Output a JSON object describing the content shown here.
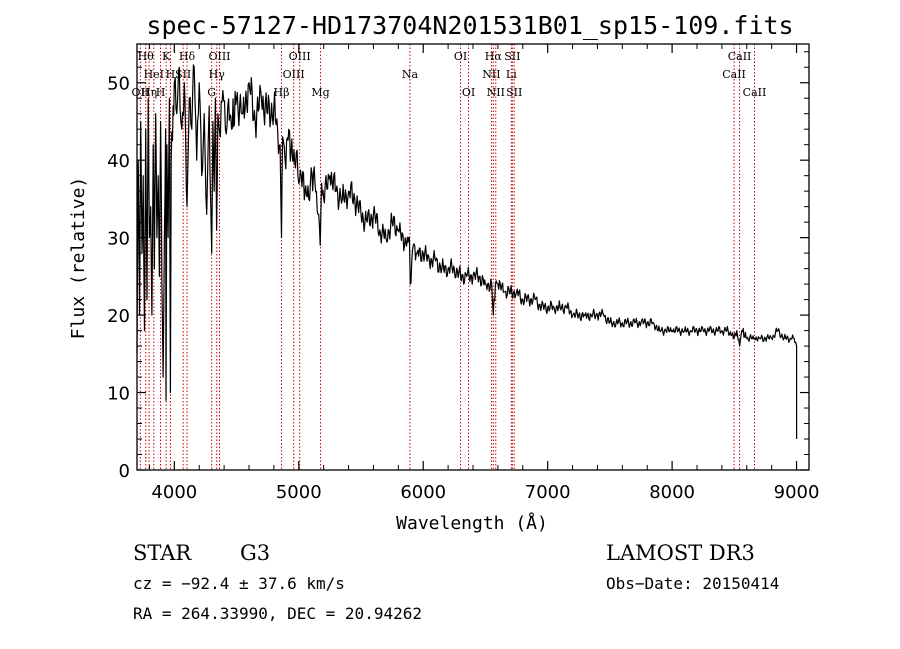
{
  "chart_data": {
    "type": "line",
    "title": "spec-57127-HD173704N201531B01_sp15-109.fits",
    "xlabel": "Wavelength (Å)",
    "ylabel": "Flux (relative)",
    "xlim": [
      3700,
      9100
    ],
    "ylim": [
      0,
      55
    ],
    "xticks": [
      4000,
      5000,
      6000,
      7000,
      8000,
      9000
    ],
    "yticks": [
      0,
      10,
      20,
      30,
      40,
      50
    ],
    "series": [
      {
        "name": "spectrum",
        "x": [
          3700,
          3710,
          3720,
          3730,
          3740,
          3750,
          3760,
          3770,
          3780,
          3790,
          3800,
          3810,
          3820,
          3830,
          3840,
          3850,
          3860,
          3870,
          3880,
          3890,
          3900,
          3910,
          3920,
          3930,
          3933,
          3940,
          3950,
          3960,
          3968,
          3975,
          3990,
          4000,
          4020,
          4040,
          4060,
          4080,
          4102,
          4120,
          4140,
          4160,
          4180,
          4200,
          4220,
          4240,
          4260,
          4280,
          4300,
          4310,
          4320,
          4330,
          4340,
          4350,
          4370,
          4390,
          4410,
          4430,
          4460,
          4500,
          4550,
          4600,
          4650,
          4700,
          4750,
          4800,
          4830,
          4850,
          4861,
          4870,
          4890,
          4920,
          4950,
          4980,
          5000,
          5020,
          5050,
          5080,
          5100,
          5130,
          5160,
          5172,
          5183,
          5200,
          5250,
          5300,
          5350,
          5400,
          5450,
          5500,
          5550,
          5600,
          5650,
          5700,
          5750,
          5800,
          5850,
          5889,
          5896,
          5920,
          5950,
          6000,
          6050,
          6100,
          6150,
          6200,
          6250,
          6300,
          6350,
          6400,
          6450,
          6500,
          6550,
          6563,
          6580,
          6600,
          6650,
          6700,
          6750,
          6800,
          6850,
          6900,
          6950,
          7000,
          7050,
          7100,
          7150,
          7200,
          7250,
          7300,
          7350,
          7400,
          7450,
          7500,
          7550,
          7600,
          7650,
          7700,
          7750,
          7800,
          7850,
          7900,
          7950,
          8000,
          8050,
          8100,
          8150,
          8200,
          8250,
          8300,
          8350,
          8400,
          8450,
          8498,
          8520,
          8542,
          8560,
          8600,
          8662,
          8700,
          8750,
          8800,
          8850,
          8900,
          8950,
          8980,
          9000
        ],
        "y": [
          15,
          40,
          20,
          45,
          28,
          38,
          18,
          44,
          22,
          48,
          30,
          34,
          20,
          42,
          26,
          46,
          30,
          38,
          25,
          45,
          24,
          12,
          30,
          44,
          9,
          42,
          30,
          48,
          10,
          40,
          47,
          50,
          46,
          52,
          44,
          50,
          34,
          48,
          44,
          52,
          40,
          50,
          38,
          46,
          33,
          47,
          28,
          45,
          36,
          48,
          31,
          46,
          43,
          49,
          44,
          47,
          44,
          48,
          46,
          50,
          45,
          48,
          46,
          47,
          44,
          42,
          30,
          43,
          40,
          44,
          40,
          41,
          37,
          38,
          36,
          35,
          39,
          37,
          33,
          29,
          37,
          35,
          38,
          36,
          35,
          36,
          35,
          33,
          32,
          33,
          31,
          30,
          32,
          31,
          29,
          30,
          24,
          29,
          28,
          28,
          27,
          27,
          26,
          26,
          26,
          25,
          25,
          25,
          25,
          24,
          24,
          20,
          24,
          24,
          23,
          23,
          23,
          22,
          22,
          22,
          21,
          21,
          21,
          21,
          21,
          20,
          20,
          20,
          20,
          20,
          20,
          19,
          19,
          19,
          19,
          19,
          19,
          19,
          19,
          18,
          18,
          18,
          18,
          18,
          18,
          18,
          18,
          18,
          18,
          18,
          18,
          17,
          18,
          16,
          18,
          17,
          17,
          17,
          17,
          17,
          18,
          17,
          17,
          17,
          16
        ]
      }
    ],
    "spectral_lines": [
      {
        "wl": 3727,
        "label": "OII",
        "row": 3
      },
      {
        "wl": 3770,
        "label": "Hθ",
        "row": 1
      },
      {
        "wl": 3797,
        "label": "Hη",
        "row": 3
      },
      {
        "wl": 3835,
        "label": "HeI",
        "row": 2
      },
      {
        "wl": 3889,
        "label": "H",
        "row": 3
      },
      {
        "wl": 3934,
        "label": "K",
        "row": 1
      },
      {
        "wl": 3969,
        "label": "H",
        "row": 2
      },
      {
        "wl": 4102,
        "label": "Hδ",
        "row": 1
      },
      {
        "wl": 4071,
        "label": "SII",
        "row": 2
      },
      {
        "wl": 4300,
        "label": "G",
        "row": 3
      },
      {
        "wl": 4341,
        "label": "Hγ",
        "row": 2
      },
      {
        "wl": 4363,
        "label": "OIII",
        "row": 1
      },
      {
        "wl": 4861,
        "label": "Hβ",
        "row": 3
      },
      {
        "wl": 4959,
        "label": "OIII",
        "row": 2
      },
      {
        "wl": 5007,
        "label": "OIII",
        "row": 1
      },
      {
        "wl": 5175,
        "label": "Mg",
        "row": 3
      },
      {
        "wl": 5893,
        "label": "Na",
        "row": 2
      },
      {
        "wl": 6300,
        "label": "OI",
        "row": 1
      },
      {
        "wl": 6364,
        "label": "OI",
        "row": 3
      },
      {
        "wl": 6548,
        "label": "NII",
        "row": 2
      },
      {
        "wl": 6563,
        "label": "Hα",
        "row": 1
      },
      {
        "wl": 6583,
        "label": "NII",
        "row": 3
      },
      {
        "wl": 6708,
        "label": "Li",
        "row": 2
      },
      {
        "wl": 6716,
        "label": "SII",
        "row": 1
      },
      {
        "wl": 6731,
        "label": "SII",
        "row": 3
      },
      {
        "wl": 8498,
        "label": "CaII",
        "row": 2
      },
      {
        "wl": 8542,
        "label": "CaII",
        "row": 1
      },
      {
        "wl": 8662,
        "label": "CaII",
        "row": 3
      }
    ]
  },
  "info": {
    "object_class": "STAR",
    "subclass": "G3",
    "survey": "LAMOST DR3",
    "velocity": "cz = −92.4 ± 37.6 km/s",
    "obs_date": "Obs−Date: 20150414",
    "coords": "RA = 264.33990, DEC =  20.94262"
  },
  "colors": {
    "spectrum": "#000000",
    "line_markers": "#cc0000"
  }
}
